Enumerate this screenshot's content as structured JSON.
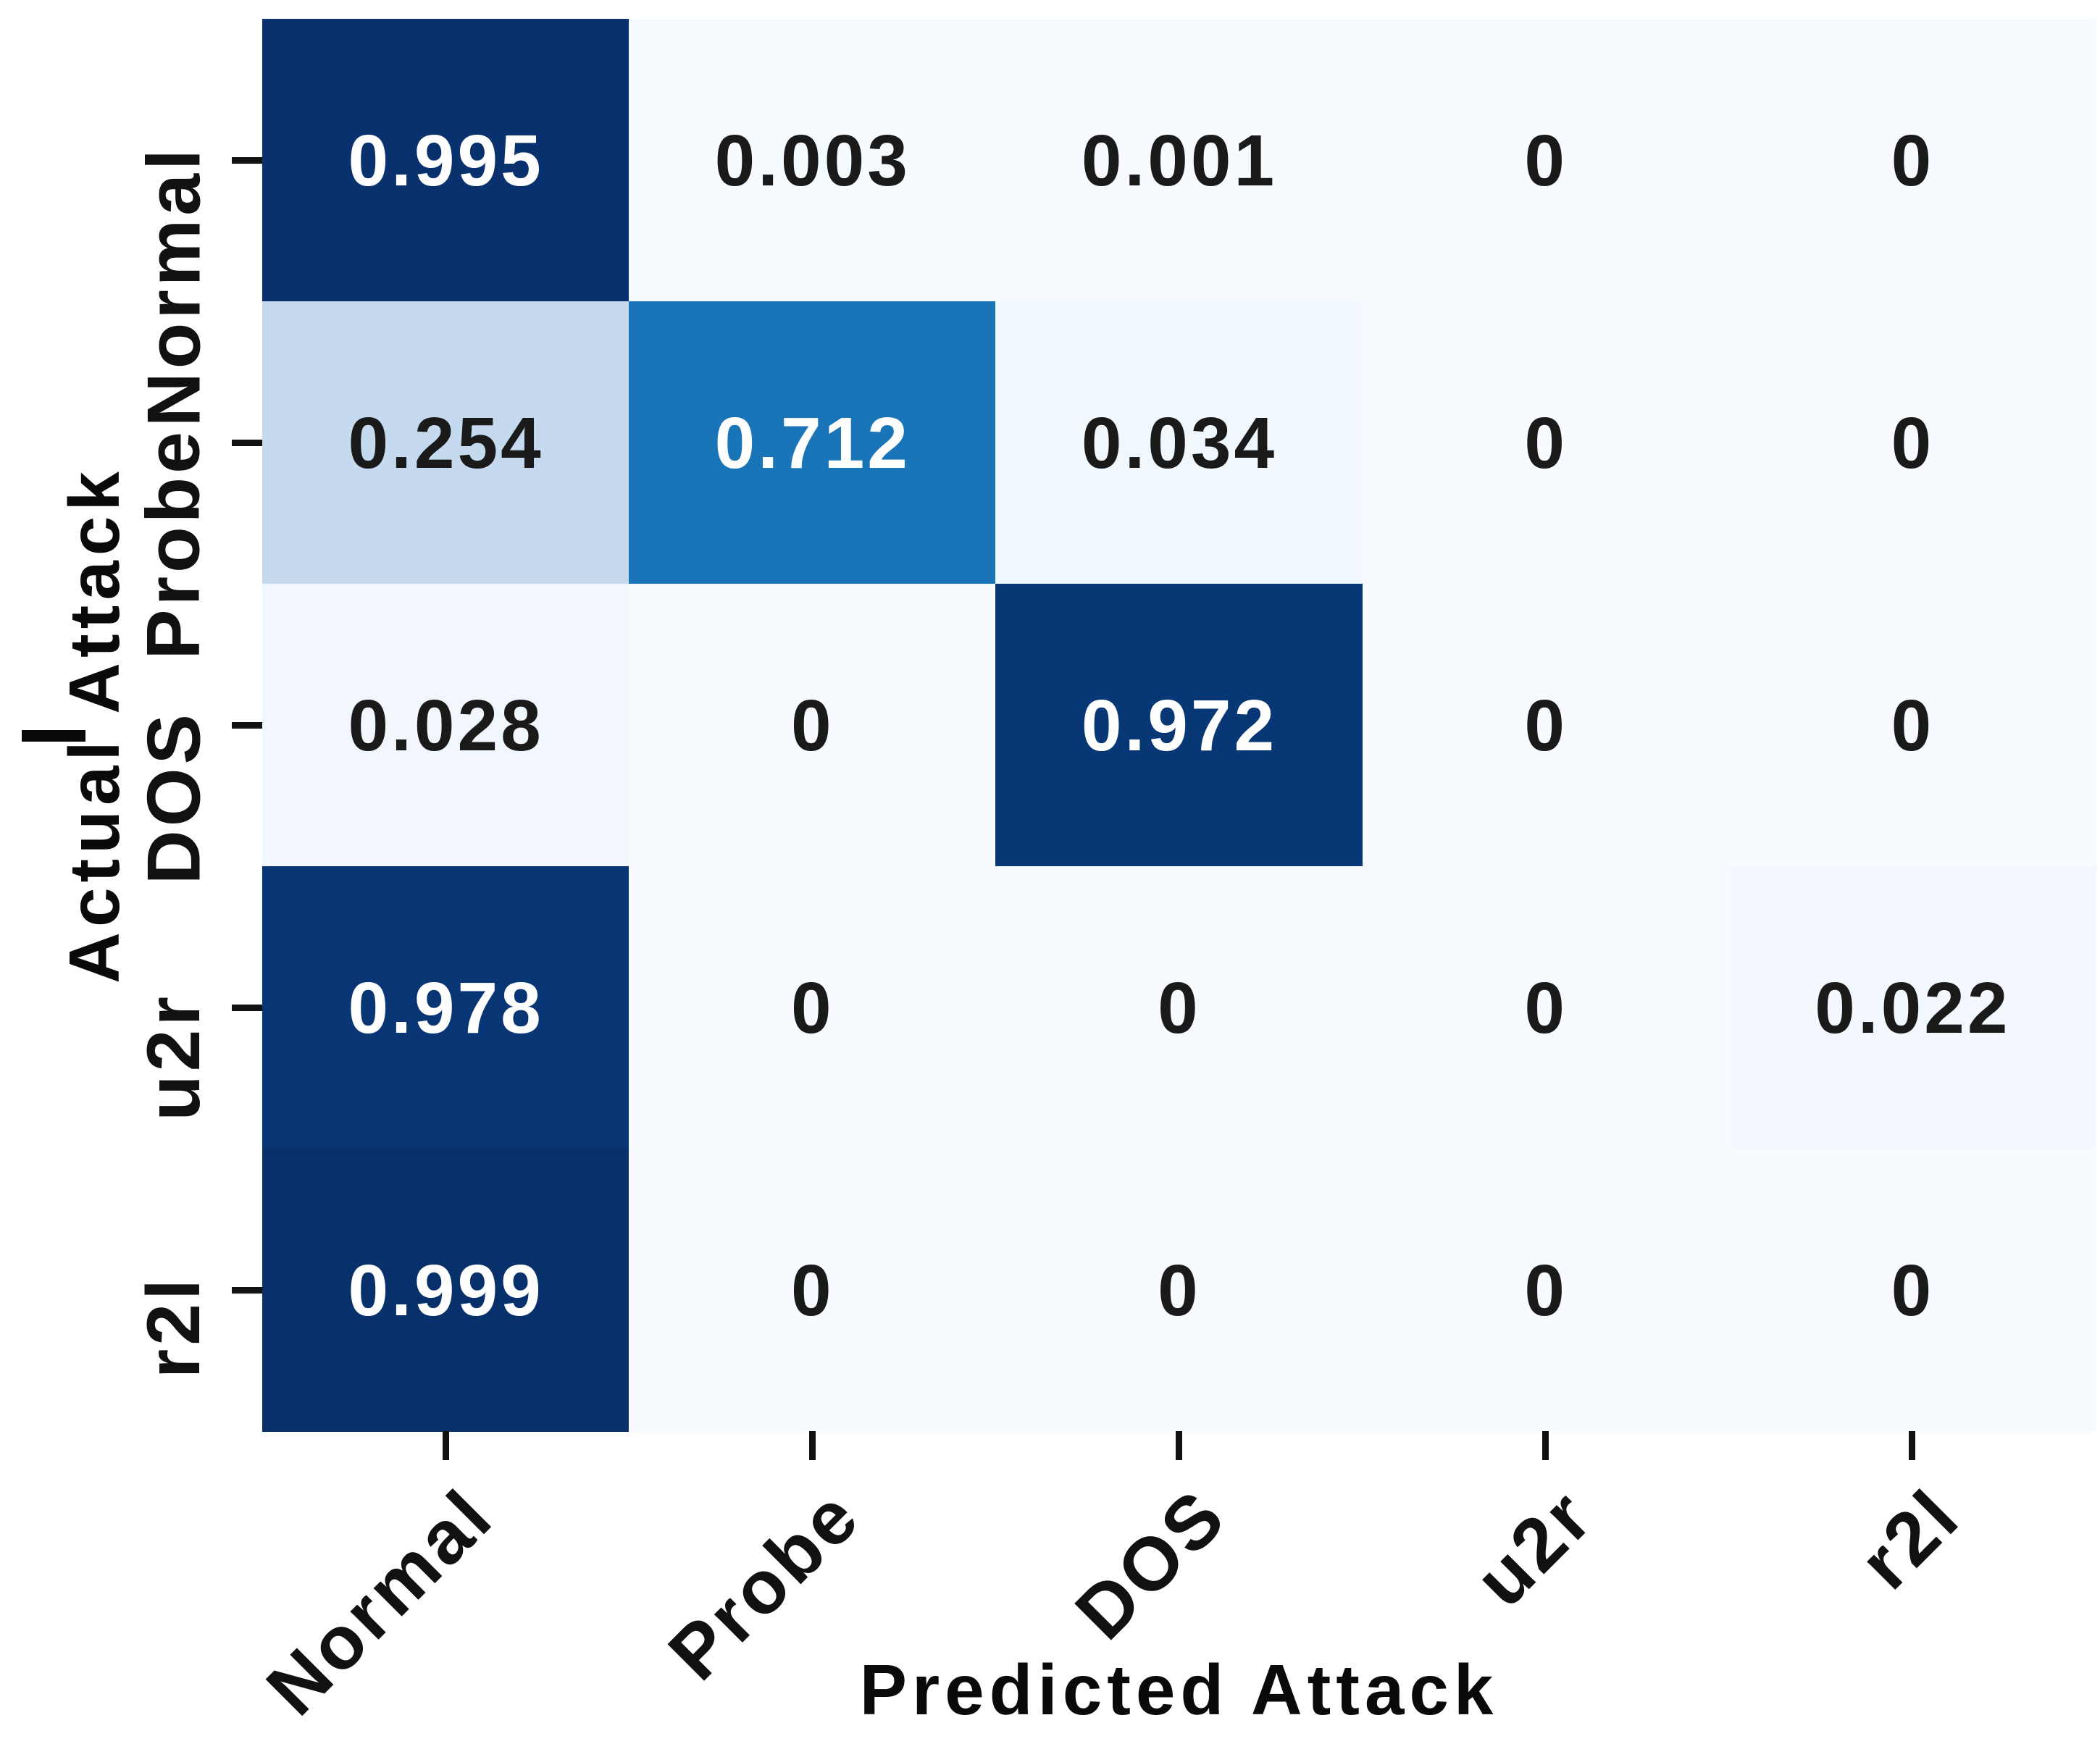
{
  "chart_data": {
    "type": "heatmap",
    "xlabel": "Predicted Attack",
    "ylabel": "Actual Attack",
    "x_categories": [
      "Normal",
      "Probe",
      "DOS",
      "u2r",
      "r2l"
    ],
    "y_categories": [
      "Normal",
      "Probe",
      "DOS",
      "u2r",
      "r2l"
    ],
    "colormap": "Blues",
    "vmin": 0,
    "vmax": 1,
    "grid": false,
    "legend_position": "none",
    "rows": [
      {
        "label": "Normal",
        "values": [
          0.995,
          0.003,
          0.001,
          0,
          0
        ],
        "display": [
          "0.995",
          "0.003",
          "0.001",
          "0",
          "0"
        ]
      },
      {
        "label": "Probe",
        "values": [
          0.254,
          0.712,
          0.034,
          0,
          0
        ],
        "display": [
          "0.254",
          "0.712",
          "0.034",
          "0",
          "0"
        ]
      },
      {
        "label": "DOS",
        "values": [
          0.028,
          0,
          0.972,
          0,
          0
        ],
        "display": [
          "0.028",
          "0",
          "0.972",
          "0",
          "0"
        ]
      },
      {
        "label": "u2r",
        "values": [
          0.978,
          0,
          0,
          0,
          0.022
        ],
        "display": [
          "0.978",
          "0",
          "0",
          "0",
          "0.022"
        ]
      },
      {
        "label": "r2l",
        "values": [
          0.999,
          0,
          0,
          0,
          0
        ],
        "display": [
          "0.999",
          "0",
          "0",
          "0",
          "0"
        ]
      }
    ],
    "colors": {
      "high_cell": "#08306b",
      "mid_cell": "#1172b5",
      "low_cell": "#f5f9fd",
      "text_on_dark": "#ffffff",
      "text_on_light": "#1a1a1a",
      "tick": "#111111"
    },
    "white_text_threshold": 0.5
  }
}
